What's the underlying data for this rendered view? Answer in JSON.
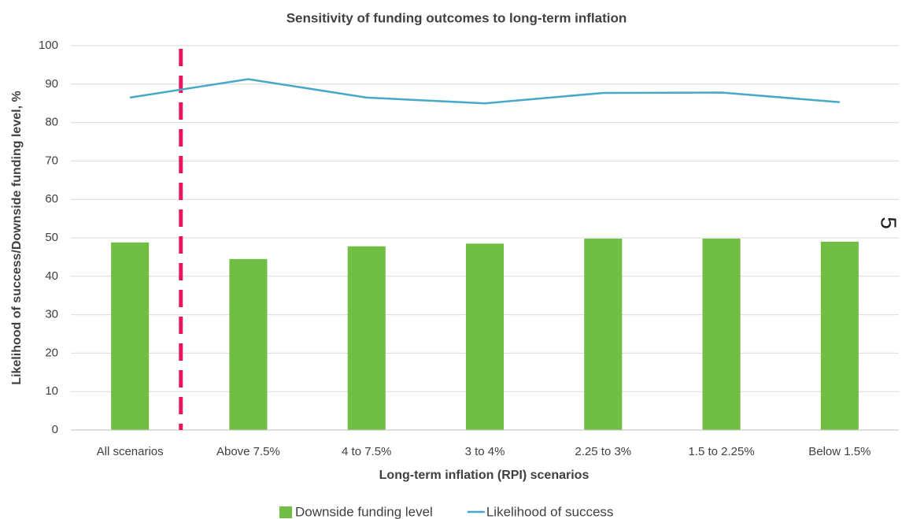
{
  "chart_data": {
    "type": "bar_line",
    "title": "Sensitivity of funding outcomes to long-term inflation",
    "x_label": "Long-term inflation (RPI) scenarios",
    "y_label": "Likelihood of success/Downside funding level, %",
    "categories": [
      "All scenarios",
      "Above 7.5%",
      "4 to 7.5%",
      "3 to 4%",
      "2.25 to 3%",
      "1.5 to 2.25%",
      "Below 1.5%"
    ],
    "series": [
      {
        "name": "Downside funding level",
        "type": "bar",
        "color": "#70bf44",
        "values": [
          48.8,
          44.5,
          47.8,
          48.5,
          49.8,
          49.8,
          49.0
        ]
      },
      {
        "name": "Likelihood of success",
        "type": "line",
        "color": "#47a9c9",
        "values": [
          86.5,
          91.3,
          86.5,
          85.0,
          87.7,
          87.8,
          85.3
        ]
      }
    ],
    "ylim": [
      0,
      100
    ],
    "yticks": [
      0,
      10,
      20,
      30,
      40,
      50,
      60,
      70,
      80,
      90,
      100
    ],
    "grid": true,
    "legend": "bottom",
    "annotations": [
      "5"
    ]
  }
}
